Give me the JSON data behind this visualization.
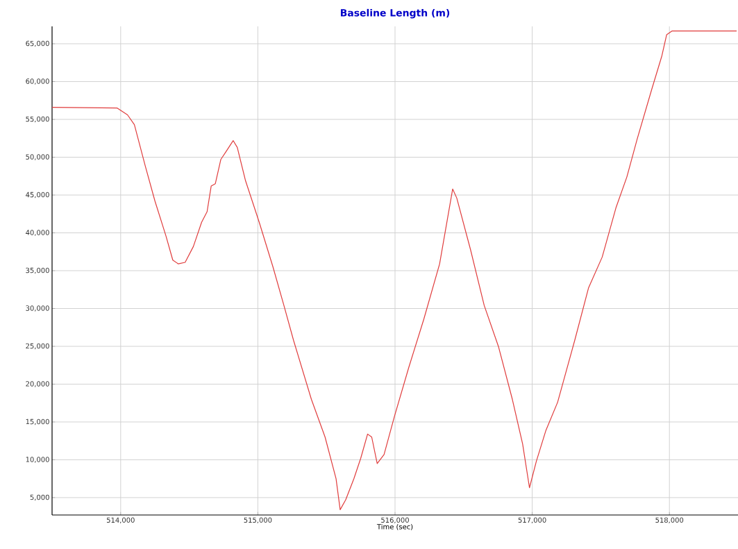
{
  "chart_data": {
    "type": "line",
    "title": "Baseline Length (m)",
    "xlabel": "Time (sec)",
    "x": [
      513500,
      513975,
      514050,
      514100,
      514180,
      514250,
      514330,
      514380,
      514420,
      514470,
      514530,
      514590,
      514630,
      514660,
      514690,
      514730,
      514770,
      514820,
      514850,
      514910,
      515010,
      515110,
      515190,
      515260,
      515390,
      515490,
      515570,
      515600,
      515640,
      515700,
      515750,
      515800,
      515830,
      515870,
      515920,
      515995,
      516100,
      516210,
      516325,
      516420,
      516450,
      516550,
      516650,
      516755,
      516855,
      516930,
      516980,
      517030,
      517100,
      517185,
      517310,
      517410,
      517510,
      517610,
      517690,
      517765,
      517870,
      517945,
      517980,
      518020,
      518120,
      518490
    ],
    "series": [
      {
        "color": "#e03c3c",
        "values": [
          56600,
          56500,
          55600,
          54300,
          48800,
          44200,
          39600,
          36400,
          35900,
          36100,
          38200,
          41400,
          42800,
          46200,
          46500,
          49700,
          50800,
          52200,
          51300,
          46900,
          41400,
          35500,
          30400,
          25800,
          18000,
          13000,
          7500,
          3400,
          4700,
          7500,
          10200,
          13400,
          13000,
          9500,
          10700,
          15700,
          22200,
          28600,
          35900,
          45800,
          44600,
          37800,
          30400,
          24900,
          18000,
          12100,
          6300,
          9800,
          13900,
          17600,
          25800,
          32700,
          36800,
          43300,
          47400,
          52400,
          58900,
          63400,
          66200,
          66700,
          66700,
          66700
        ]
      }
    ],
    "xlim": [
      513500,
      518500
    ],
    "ylim": [
      2700,
      67300
    ],
    "xticks": [
      {
        "value": 514000,
        "label": "514,000"
      },
      {
        "value": 515000,
        "label": "515,000"
      },
      {
        "value": 516000,
        "label": "516,000"
      },
      {
        "value": 517000,
        "label": "517,000"
      },
      {
        "value": 518000,
        "label": "518,000"
      }
    ],
    "yticks": [
      {
        "value": 5000,
        "label": "5,000"
      },
      {
        "value": 10000,
        "label": "10,000"
      },
      {
        "value": 15000,
        "label": "15,000"
      },
      {
        "value": 20000,
        "label": "20,000"
      },
      {
        "value": 25000,
        "label": "25,000"
      },
      {
        "value": 30000,
        "label": "30,000"
      },
      {
        "value": 35000,
        "label": "35,000"
      },
      {
        "value": 40000,
        "label": "40,000"
      },
      {
        "value": 45000,
        "label": "45,000"
      },
      {
        "value": 50000,
        "label": "50,000"
      },
      {
        "value": 55000,
        "label": "55,000"
      },
      {
        "value": 60000,
        "label": "60,000"
      },
      {
        "value": 65000,
        "label": "65,000"
      }
    ],
    "grid": true,
    "marker": "none",
    "line_style": "solid"
  }
}
